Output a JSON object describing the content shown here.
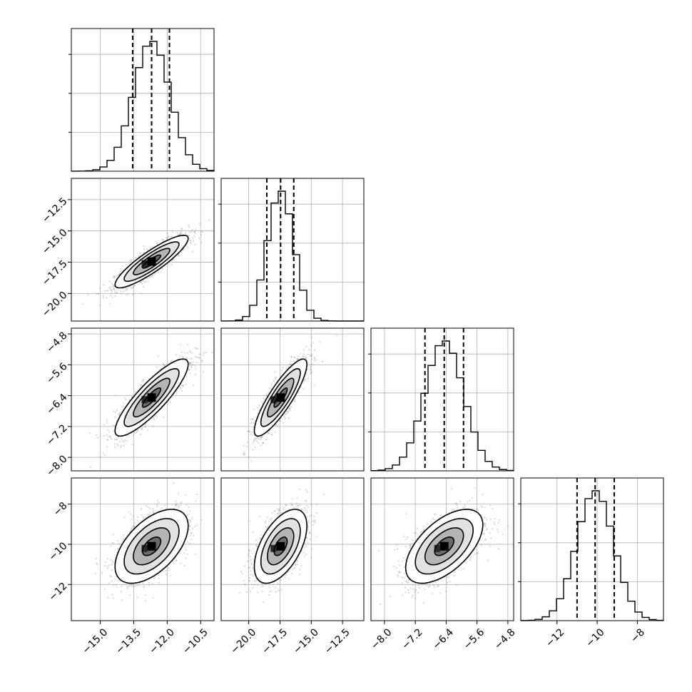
{
  "chart_data": {
    "type": "corner",
    "colors": {
      "contour": "#000000",
      "hist": "#000000",
      "grid": "#b0b0b0",
      "points": "#8a8a8a"
    },
    "quantiles": [
      0.16,
      0.5,
      0.84
    ],
    "grid": true,
    "parameters": [
      {
        "index": 0,
        "range": [
          -16.3,
          -9.9
        ],
        "ticks": [
          -15.0,
          -13.5,
          -12.0,
          -10.5
        ],
        "tick_labels": [
          "−15.0",
          "−13.5",
          "−12.0",
          "−10.5"
        ],
        "quantile_values": [
          -13.55,
          -12.7,
          -11.9
        ],
        "mean": -12.7,
        "sd": 0.82,
        "hist_peak": 1.0
      },
      {
        "index": 1,
        "range": [
          -22.2,
          -10.8
        ],
        "ticks": [
          -20.0,
          -17.5,
          -15.0,
          -12.5
        ],
        "tick_labels": [
          "−20.0",
          "−17.5",
          "−15.0",
          "−12.5"
        ],
        "quantile_values": [
          -18.55,
          -17.45,
          -16.4
        ],
        "mean": -17.45,
        "sd": 1.05,
        "hist_peak": 1.0
      },
      {
        "index": 2,
        "range": [
          -8.35,
          -4.65
        ],
        "ticks": [
          -8.0,
          -7.2,
          -6.4,
          -5.6,
          -4.8
        ],
        "tick_labels": [
          "−8.0",
          "−7.2",
          "−6.4",
          "−5.6",
          "−4.8"
        ],
        "quantile_values": [
          -6.95,
          -6.45,
          -5.95
        ],
        "mean": -6.45,
        "sd": 0.5,
        "hist_peak": 1.0
      },
      {
        "index": 3,
        "range": [
          -13.8,
          -6.7
        ],
        "ticks": [
          -12,
          -10,
          -8
        ],
        "tick_labels": [
          "−12",
          "−10",
          "−8"
        ],
        "quantile_values": [
          -11.0,
          -10.1,
          -9.15
        ],
        "mean": -10.1,
        "sd": 0.92,
        "hist_peak": 1.0
      }
    ],
    "correlations": {
      "1_0": 0.88,
      "2_0": 0.86,
      "2_1": 0.86,
      "3_0": 0.55,
      "3_1": 0.55,
      "3_2": 0.58
    },
    "contour_levels_sigma": [
      0.5,
      1.0,
      1.5,
      2.0
    ]
  }
}
